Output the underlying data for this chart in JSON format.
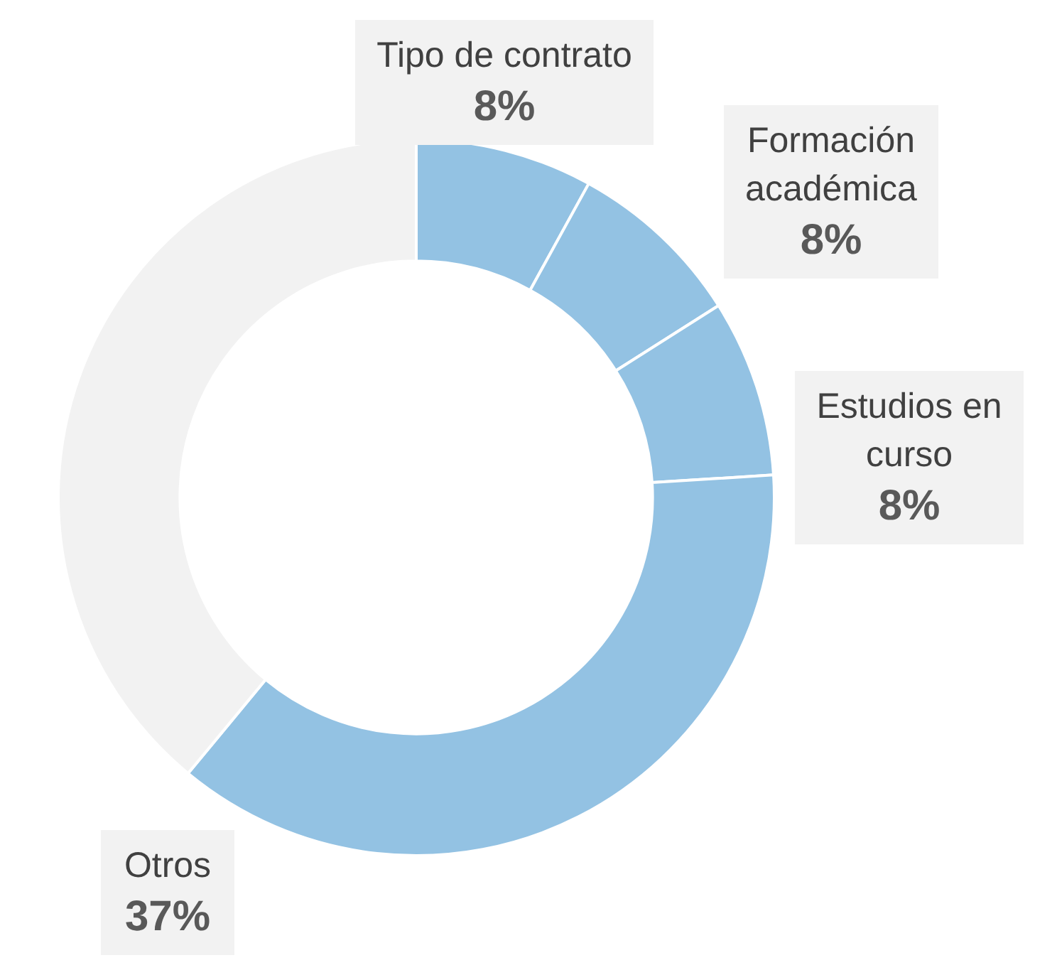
{
  "chart_data": {
    "type": "donut",
    "categories": [
      "Tipo de contrato",
      "Formación académica",
      "Estudios en curso",
      "Otros",
      null
    ],
    "values": [
      8,
      8,
      8,
      37,
      39
    ],
    "colors": [
      "#93c2e3",
      "#93c2e3",
      "#93c2e3",
      "#93c2e3",
      "#f2f2f2"
    ],
    "value_labels": [
      "8%",
      "8%",
      "8%",
      "37%",
      null
    ],
    "legend": false
  }
}
